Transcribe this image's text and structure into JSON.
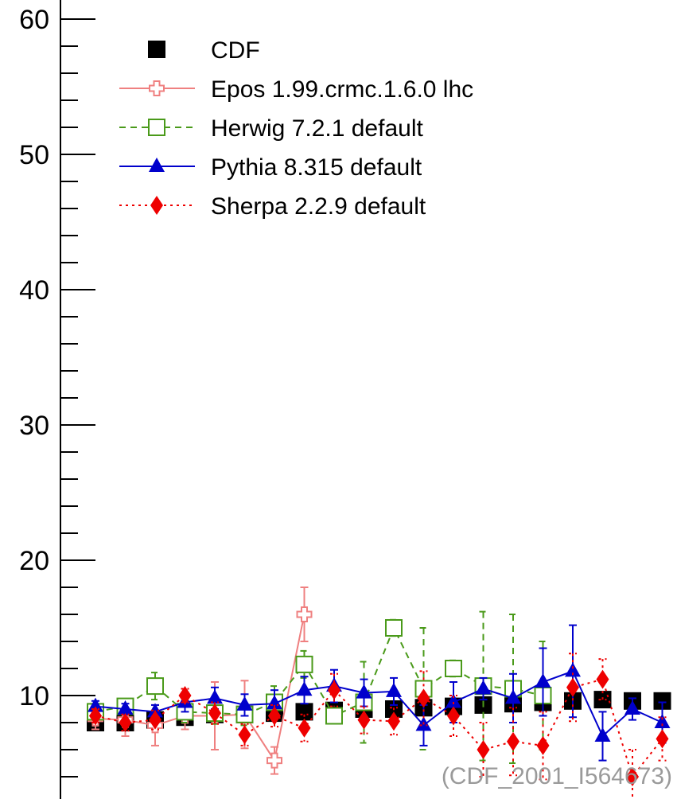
{
  "chart_data": {
    "type": "scatter",
    "x": [
      1,
      2,
      3,
      4,
      5,
      6,
      7,
      8,
      9,
      10,
      11,
      12,
      13,
      14,
      15,
      16,
      17,
      18,
      19,
      20,
      21
    ],
    "ylim": [
      4,
      61
    ],
    "yticks": [
      "10",
      "20",
      "30",
      "40",
      "50",
      "60"
    ],
    "grid": false,
    "legend_position": "top-left",
    "watermark": "(CDF_2001_I564673)",
    "series": [
      {
        "name": "CDF",
        "color": "#000000",
        "marker": "square",
        "line": "none",
        "values": [
          8.0,
          8.0,
          8.2,
          8.4,
          8.6,
          8.6,
          8.7,
          8.8,
          8.9,
          9.0,
          9.0,
          9.1,
          9.2,
          9.3,
          9.4,
          9.5,
          9.6,
          9.7,
          9.6,
          9.6,
          9.6
        ],
        "errors": [
          0.3,
          0.3,
          0.3,
          0.3,
          0.3,
          0.3,
          0.3,
          0.3,
          0.3,
          0.3,
          0.3,
          0.3,
          0.3,
          0.3,
          0.3,
          0.3,
          0.3,
          0.3,
          0.3,
          0.3,
          0.3
        ]
      },
      {
        "name": "Epos 1.99.crmc.1.6.0 lhc",
        "color": "#ef8080",
        "marker": "cross-open",
        "line": "solid",
        "values": [
          8.3,
          8.2,
          7.8,
          8.5,
          8.5,
          8.6,
          5.2,
          16.0
        ],
        "errors": [
          0.8,
          1.2,
          1.5,
          1.0,
          2.5,
          2.5,
          1.0,
          2.0
        ]
      },
      {
        "name": "Herwig 7.2.1 default",
        "color": "#4a9a1a",
        "marker": "square-open",
        "line": "dashed",
        "values": [
          8.8,
          9.2,
          10.7,
          8.8,
          8.7,
          8.6,
          9.5,
          12.3,
          8.5,
          9.5,
          15.0,
          10.5,
          12.0,
          10.7,
          10.5,
          10.0
        ],
        "errors": [
          0.4,
          0.5,
          1.0,
          0.8,
          0.8,
          0.8,
          1.2,
          1.0,
          0.5,
          3.0,
          0.6,
          4.5,
          0.6,
          5.5,
          5.5,
          4.0
        ]
      },
      {
        "name": "Pythia 8.315 default",
        "color": "#0000cc",
        "marker": "triangle",
        "line": "solid",
        "values": [
          9.2,
          9.0,
          8.8,
          9.5,
          9.8,
          9.3,
          9.4,
          10.4,
          10.7,
          10.2,
          10.3,
          7.8,
          9.5,
          10.5,
          9.8,
          11.0,
          11.8,
          7.0,
          9.0,
          8.0
        ],
        "errors": [
          0.4,
          0.4,
          0.5,
          0.7,
          0.8,
          0.8,
          1.0,
          1.0,
          1.2,
          1.0,
          1.0,
          1.5,
          1.5,
          0.8,
          1.8,
          2.5,
          3.4,
          1.8,
          0.8,
          1.5
        ]
      },
      {
        "name": "Sherpa 2.2.9 default",
        "color": "#ee0000",
        "marker": "diamond",
        "line": "dotted",
        "values": [
          8.5,
          8.0,
          8.2,
          10.0,
          8.7,
          7.1,
          8.5,
          7.6,
          10.4,
          8.2,
          8.1,
          9.8,
          8.5,
          6.0,
          6.6,
          6.3,
          10.6,
          11.2,
          4.0,
          6.8
        ],
        "errors": [
          0.5,
          0.6,
          0.7,
          0.5,
          0.8,
          0.8,
          0.8,
          1.0,
          1.2,
          1.0,
          1.0,
          2.0,
          1.5,
          2.0,
          2.5,
          2.5,
          2.5,
          1.5,
          2.0,
          1.6
        ]
      }
    ]
  }
}
